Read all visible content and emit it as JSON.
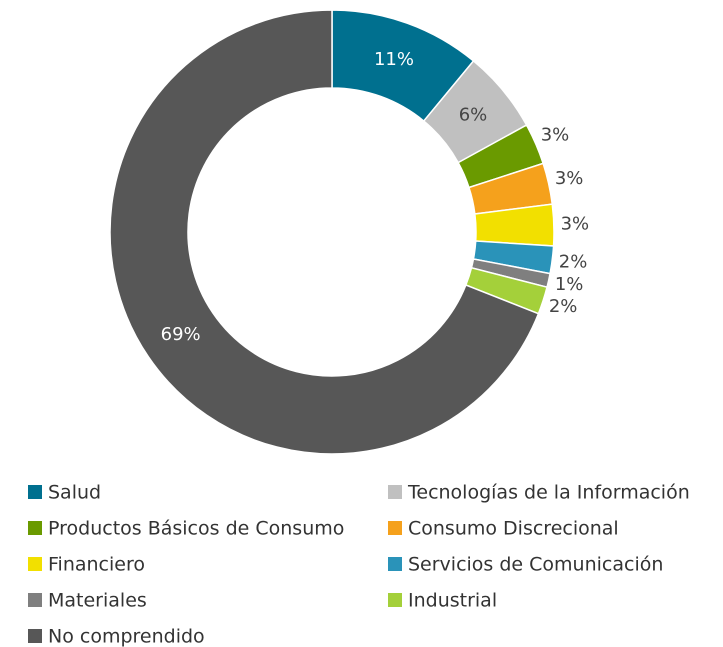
{
  "chart_data": {
    "type": "donut",
    "categories": [
      "Salud",
      "Tecnologías de la Información",
      "Productos Básicos de Consumo",
      "Consumo Discrecional",
      "Financiero",
      "Servicios de Comunicación",
      "Materiales",
      "Industrial",
      "No comprendido"
    ],
    "values": [
      11,
      6,
      3,
      3,
      3,
      2,
      1,
      2,
      69
    ],
    "value_labels": [
      "11%",
      "6%",
      "3%",
      "3%",
      "3%",
      "2%",
      "1%",
      "2%",
      "69%"
    ],
    "colors": [
      "#00708f",
      "#c0c0c0",
      "#6a9a00",
      "#f5a11c",
      "#f2e000",
      "#2a93b9",
      "#7f7f7f",
      "#a4d03a",
      "#575757"
    ],
    "legend": "bottom"
  }
}
